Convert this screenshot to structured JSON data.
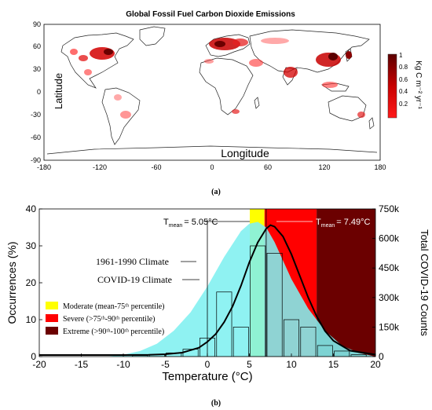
{
  "panel_a": {
    "title": "Global Fossil Fuel Carbon Dioxide Emissions",
    "xlabel": "Longitude",
    "ylabel": "Latitude",
    "xticks": [
      "-180",
      "-120",
      "-60",
      "0",
      "60",
      "120",
      "180"
    ],
    "yticks": [
      "90",
      "60",
      "30",
      "0",
      "-30",
      "-60",
      "-90"
    ],
    "colorbar_label": "Kg C m⁻² yr⁻¹",
    "colorbar_ticks": [
      "1",
      "0.8",
      "0.6",
      "0.4",
      "0.2"
    ],
    "panel_label": "(a)",
    "colors": {
      "low": "#ff1a1a",
      "high": "#5c0000",
      "coast": "#000000"
    }
  },
  "panel_b": {
    "panel_label": "(b)",
    "xlabel": "Temperature (°C)",
    "ylabel_left": "Occurrences (%)",
    "ylabel_right": "Total COVID-19 Counts",
    "xticks": [
      "-20",
      "-15",
      "-10",
      "-5",
      "0",
      "5",
      "10",
      "15",
      "20"
    ],
    "yticks_left": [
      "0",
      "10",
      "20",
      "30",
      "40"
    ],
    "yticks_right": [
      "0",
      "150k",
      "300k",
      "450k",
      "600k",
      "750k"
    ],
    "annotation_climate_1961": "1961-1990 Climate",
    "annotation_climate_covid": "COVID-19 Climate",
    "t_mean_1": "T",
    "t_mean_1_sub": "mean",
    "t_mean_1_value": "= 5.05°C",
    "t_mean_2": "T",
    "t_mean_2_sub": "mean",
    "t_mean_2_value": "= 7.49°C",
    "legend": [
      {
        "label": "Moderate (mean-75ᵗʰ percentile)",
        "color": "#ffff00"
      },
      {
        "label": "Severe (>75ᵗʰ-90ᵗʰ percentile)",
        "color": "#ff0000"
      },
      {
        "label": "Extreme (>90ᵗʰ-100ᵗʰ percentile)",
        "color": "#6b0000"
      }
    ],
    "colors": {
      "climate_fill": "#7ff0f0",
      "curve": "#000000",
      "bars": "#000000"
    }
  },
  "chart_data": [
    {
      "type": "line",
      "name": "COVID-19 counts vs temperature",
      "x": [
        -20,
        -15,
        -10,
        -7,
        -5,
        -3,
        -1,
        0,
        1,
        2,
        3,
        4,
        5,
        6,
        7,
        7.5,
        8,
        9,
        10,
        11,
        12,
        13,
        14,
        15,
        17,
        20
      ],
      "y": [
        8000,
        8000,
        8000,
        9000,
        12000,
        20000,
        45000,
        75000,
        115000,
        175000,
        255000,
        360000,
        480000,
        580000,
        650000,
        668000,
        660000,
        610000,
        520000,
        410000,
        300000,
        205000,
        130000,
        80000,
        30000,
        10000
      ],
      "xlabel": "Temperature (°C)",
      "ylabel": "Total COVID-19 Counts",
      "xlim": [
        -20,
        20
      ],
      "ylim": [
        0,
        750000
      ]
    },
    {
      "type": "bar",
      "name": "COVID-19 Climate occurrences",
      "x": [
        -8,
        -6,
        -4,
        -2,
        0,
        2,
        4,
        6,
        8,
        10,
        12,
        14,
        16,
        18
      ],
      "values": [
        0.3,
        0.5,
        1.0,
        2.0,
        5.0,
        17.5,
        8.0,
        30.0,
        28.0,
        10.0,
        8.0,
        3.0,
        1.5,
        0.5
      ],
      "ylabel": "Occurrences (%)",
      "ylim": [
        0,
        40
      ]
    },
    {
      "type": "area",
      "name": "1961-1990 Climate occurrences",
      "x": [
        -20,
        -12,
        -10,
        -8,
        -6,
        -4,
        -2,
        0,
        2,
        4,
        5,
        6,
        7,
        8,
        9,
        10,
        12,
        14,
        16,
        18,
        20
      ],
      "y": [
        0,
        0,
        0.5,
        1.5,
        3.5,
        7,
        12,
        19,
        27,
        34,
        36,
        36.5,
        35,
        31,
        26,
        21,
        13,
        7,
        3,
        1,
        0
      ],
      "ylim": [
        0,
        40
      ]
    },
    {
      "type": "map",
      "name": "Global fossil fuel CO2 emissions",
      "xlim": [
        -180,
        180
      ],
      "ylim": [
        -90,
        90
      ],
      "colorbar_range": [
        0,
        1
      ]
    }
  ]
}
